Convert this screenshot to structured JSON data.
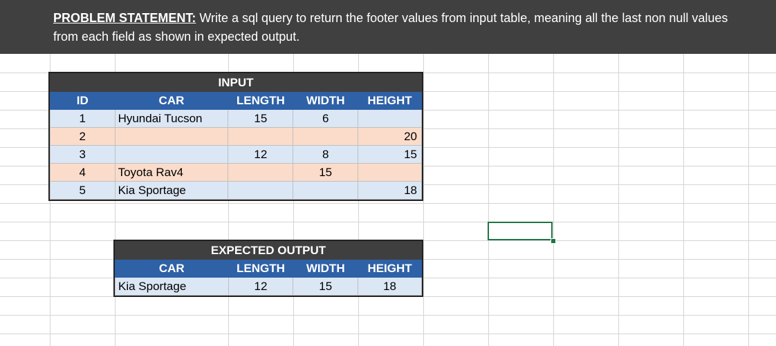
{
  "problem": {
    "label": "PROBLEM STATEMENT:",
    "text": " Write a sql query to return the footer values from input table, meaning all the last non null values from each field as shown in expected output."
  },
  "input_table": {
    "title": "INPUT",
    "headers": [
      "ID",
      "CAR",
      "LENGTH",
      "WIDTH",
      "HEIGHT"
    ],
    "rows": [
      [
        "1",
        "Hyundai Tucson",
        "15",
        "6",
        ""
      ],
      [
        "2",
        "",
        "",
        "",
        "20"
      ],
      [
        "3",
        "",
        "12",
        "8",
        "15"
      ],
      [
        "4",
        "Toyota Rav4",
        "",
        "15",
        ""
      ],
      [
        "5",
        "Kia Sportage",
        "",
        "",
        "18"
      ]
    ]
  },
  "output_table": {
    "title": "EXPECTED OUTPUT",
    "headers": [
      "CAR",
      "LENGTH",
      "WIDTH",
      "HEIGHT"
    ],
    "rows": [
      [
        "Kia Sportage",
        "12",
        "15",
        "18"
      ]
    ]
  },
  "colors": {
    "banner": "#404040",
    "header_blue": "#2e61a6",
    "row_blue": "#dbe7f5",
    "row_peach": "#fbdcca",
    "selection": "#217346"
  }
}
